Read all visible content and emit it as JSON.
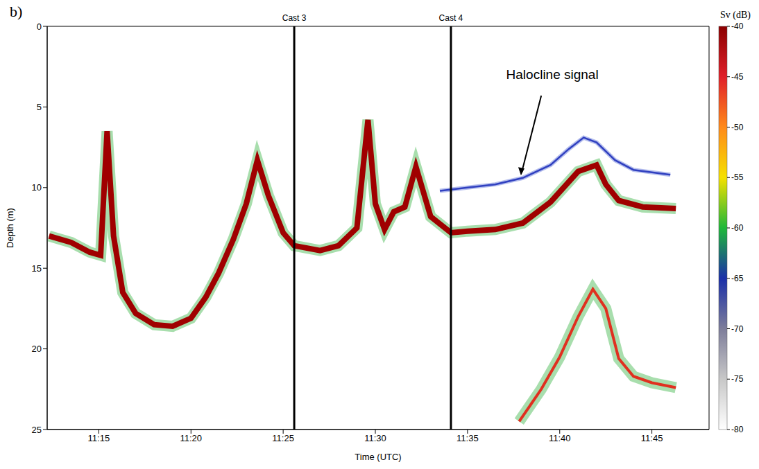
{
  "chart_data": {
    "type": "line",
    "panel": "b)",
    "x_label": "Time (UTC)",
    "y_label": "Depth (m)",
    "xlim": [
      12.2,
      48.1
    ],
    "xticks": [
      {
        "value": 15,
        "label": "11:15"
      },
      {
        "value": 20,
        "label": "11:20"
      },
      {
        "value": 25,
        "label": "11:25"
      },
      {
        "value": 30,
        "label": "11:30"
      },
      {
        "value": 35,
        "label": "11:35"
      },
      {
        "value": 40,
        "label": "11:40"
      },
      {
        "value": 45,
        "label": "11:45"
      }
    ],
    "ylim": [
      0,
      25
    ],
    "yticks": [
      0,
      5,
      10,
      15,
      20,
      25
    ],
    "grid": false,
    "vertical_lines": [
      {
        "x": 25.6,
        "label": "Cast 3"
      },
      {
        "x": 34.1,
        "label": "Cast 4"
      }
    ],
    "annotations": [
      {
        "text": "Halocline signal"
      }
    ],
    "series": [
      {
        "color": "#a00000",
        "x": [
          12.3,
          13.5,
          14.5,
          15.1,
          15.45,
          15.8,
          16.3,
          17.0,
          18.0,
          19.0,
          20.0,
          20.8,
          21.5,
          22.3,
          23.0,
          23.6,
          24.2,
          25.0,
          25.6,
          27.0,
          28.0,
          29.0,
          29.6,
          30.0,
          30.5,
          31.0,
          31.6,
          32.2,
          33.0,
          34.1,
          35.0,
          36.5,
          38.0,
          39.5,
          41.0,
          42.0,
          42.5,
          43.2,
          44.5,
          46.3
        ],
        "values": [
          13.0,
          13.4,
          14.0,
          14.2,
          6.5,
          13.0,
          16.5,
          17.8,
          18.5,
          18.6,
          18.1,
          16.8,
          15.3,
          13.2,
          11.0,
          8.3,
          10.5,
          12.8,
          13.6,
          13.9,
          13.6,
          12.5,
          5.8,
          11.0,
          12.6,
          11.5,
          11.2,
          8.7,
          11.8,
          12.8,
          12.7,
          12.6,
          12.2,
          10.9,
          9.0,
          8.6,
          9.8,
          10.8,
          11.2,
          11.3
        ]
      },
      {
        "color": "#3040c0",
        "x": [
          33.5,
          35.0,
          36.5,
          38.0,
          39.5,
          40.5,
          41.3,
          42.0,
          43.0,
          44.0,
          46.0
        ],
        "values": [
          10.2,
          10.0,
          9.8,
          9.4,
          8.6,
          7.6,
          6.9,
          7.2,
          8.3,
          8.9,
          9.2
        ]
      },
      {
        "color": "#e03020",
        "x": [
          37.8,
          39.0,
          40.0,
          41.0,
          41.8,
          42.5,
          43.2,
          44.0,
          45.0,
          46.3
        ],
        "values": [
          24.5,
          22.5,
          20.5,
          18.0,
          16.3,
          17.5,
          20.6,
          21.7,
          22.1,
          22.4
        ]
      }
    ],
    "colorbar": {
      "label": "Sv (dB)",
      "range": [
        -80,
        -40
      ],
      "ticks": [
        -40,
        -45,
        -50,
        -55,
        -60,
        -65,
        -70,
        -75,
        -80
      ]
    }
  }
}
